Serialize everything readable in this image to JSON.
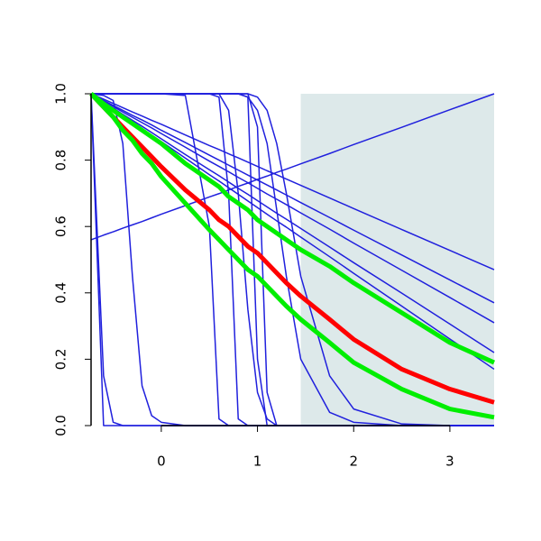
{
  "chart_data": {
    "type": "line",
    "x": [
      -0.73,
      -0.6,
      -0.5,
      -0.4,
      -0.3,
      -0.2,
      -0.1,
      0,
      0.25,
      0.5,
      0.6,
      0.7,
      0.8,
      0.9,
      1,
      1.1,
      1.2,
      1.3,
      1.45,
      1.75,
      2,
      2.5,
      3,
      3.46
    ],
    "xlim": [
      -0.73,
      3.46
    ],
    "xticks": [
      0,
      1,
      2,
      3
    ],
    "ylim": [
      0,
      1
    ],
    "yticks": [
      {
        "value": 0,
        "label": "0.0"
      },
      {
        "value": 0.2,
        "label": "0.2"
      },
      {
        "value": 0.4,
        "label": "0.4"
      },
      {
        "value": 0.6,
        "label": "0.6"
      },
      {
        "value": 0.8,
        "label": "0.8"
      },
      {
        "value": 1,
        "label": "1.0"
      }
    ],
    "shaded_region": {
      "xmin": 1.45,
      "xmax": 3.46,
      "color": "#dde9ea"
    },
    "series": [
      {
        "color": "#2020dd",
        "width": 1.5,
        "values": [
          0.56,
          0.574,
          0.584,
          0.595,
          0.605,
          0.615,
          0.626,
          0.637,
          0.663,
          0.689,
          0.699,
          0.71,
          0.721,
          0.731,
          0.742,
          0.752,
          0.763,
          0.773,
          0.789,
          0.82,
          0.847,
          0.899,
          0.952,
          1
        ]
      },
      {
        "color": "#2020dd",
        "width": 1.5,
        "values": [
          1,
          0.984,
          0.971,
          0.958,
          0.945,
          0.933,
          0.92,
          0.908,
          0.876,
          0.844,
          0.832,
          0.819,
          0.807,
          0.794,
          0.781,
          0.768,
          0.756,
          0.743,
          0.724,
          0.686,
          0.654,
          0.591,
          0.528,
          0.47
        ]
      },
      {
        "color": "#2020dd",
        "width": 1.5,
        "values": [
          1,
          0.98,
          0.965,
          0.95,
          0.935,
          0.921,
          0.906,
          0.89,
          0.853,
          0.815,
          0.8,
          0.785,
          0.77,
          0.755,
          0.74,
          0.725,
          0.71,
          0.695,
          0.672,
          0.627,
          0.589,
          0.514,
          0.439,
          0.37
        ]
      },
      {
        "color": "#2020dd",
        "width": 1.5,
        "values": [
          1,
          0.979,
          0.962,
          0.945,
          0.929,
          0.913,
          0.897,
          0.88,
          0.839,
          0.797,
          0.781,
          0.765,
          0.748,
          0.732,
          0.715,
          0.698,
          0.682,
          0.666,
          0.641,
          0.592,
          0.55,
          0.468,
          0.386,
          0.31
        ]
      },
      {
        "color": "#2020dd",
        "width": 1.5,
        "values": [
          1,
          0.976,
          0.957,
          0.938,
          0.92,
          0.902,
          0.883,
          0.864,
          0.817,
          0.771,
          0.753,
          0.734,
          0.715,
          0.697,
          0.678,
          0.659,
          0.64,
          0.622,
          0.594,
          0.538,
          0.491,
          0.399,
          0.306,
          0.22
        ]
      },
      {
        "color": "#2020dd",
        "width": 1.5,
        "values": [
          1,
          0.974,
          0.954,
          0.934,
          0.915,
          0.895,
          0.875,
          0.856,
          0.806,
          0.756,
          0.737,
          0.717,
          0.697,
          0.677,
          0.657,
          0.637,
          0.617,
          0.598,
          0.568,
          0.509,
          0.459,
          0.36,
          0.261,
          0.17
        ]
      },
      {
        "color": "#2020dd",
        "width": 1.5,
        "values": [
          1,
          0,
          0,
          0,
          0,
          0,
          0,
          0,
          0,
          0,
          0,
          0,
          0,
          0,
          0,
          0,
          0,
          0,
          0,
          0,
          0,
          0,
          0,
          0
        ]
      },
      {
        "color": "#2020dd",
        "width": 1.5,
        "values": [
          1,
          0.15,
          0.01,
          0,
          0,
          0,
          0,
          0,
          0,
          0,
          0,
          0,
          0,
          0,
          0,
          0,
          0,
          0,
          0,
          0,
          0,
          0,
          0,
          0
        ]
      },
      {
        "color": "#2020dd",
        "width": 1.5,
        "values": [
          1,
          0.995,
          0.98,
          0.85,
          0.45,
          0.12,
          0.03,
          0.01,
          0,
          0,
          0,
          0,
          0,
          0,
          0,
          0,
          0,
          0,
          0,
          0,
          0,
          0,
          0,
          0
        ]
      },
      {
        "color": "#2020dd",
        "width": 1.5,
        "values": [
          1,
          1,
          1,
          1,
          1,
          1,
          1,
          1,
          0.995,
          0.6,
          0.02,
          0,
          0,
          0,
          0,
          0,
          0,
          0,
          0,
          0,
          0,
          0,
          0,
          0
        ]
      },
      {
        "color": "#2020dd",
        "width": 1.5,
        "values": [
          1,
          1,
          1,
          1,
          1,
          1,
          1,
          1,
          1,
          1,
          0.99,
          0.7,
          0.02,
          0,
          0,
          0,
          0,
          0,
          0,
          0,
          0,
          0,
          0,
          0
        ]
      },
      {
        "color": "#2020dd",
        "width": 1.5,
        "values": [
          1,
          1,
          1,
          1,
          1,
          1,
          1,
          1,
          1,
          1,
          1,
          1,
          1,
          0.99,
          0.2,
          0,
          0,
          0,
          0,
          0,
          0,
          0,
          0,
          0
        ]
      },
      {
        "color": "#2020dd",
        "width": 1.5,
        "values": [
          1,
          1,
          1,
          1,
          1,
          1,
          1,
          1,
          1,
          1,
          1,
          0.95,
          0.7,
          0.35,
          0.1,
          0.02,
          0,
          0,
          0,
          0,
          0,
          0,
          0,
          0
        ]
      },
      {
        "color": "#2020dd",
        "width": 1.5,
        "values": [
          1,
          1,
          1,
          1,
          1,
          1,
          1,
          1,
          1,
          1,
          1,
          1,
          1,
          1,
          0.9,
          0.1,
          0,
          0,
          0,
          0,
          0,
          0,
          0,
          0
        ]
      },
      {
        "color": "#2020dd",
        "width": 1.5,
        "values": [
          1,
          1,
          1,
          1,
          1,
          1,
          1,
          1,
          1,
          1,
          1,
          1,
          1,
          0.99,
          0.95,
          0.85,
          0.65,
          0.45,
          0.2,
          0.04,
          0.01,
          0,
          0,
          0
        ]
      },
      {
        "color": "#2020dd",
        "width": 1.5,
        "values": [
          1,
          1,
          1,
          1,
          1,
          1,
          1,
          1,
          1,
          1,
          1,
          1,
          1,
          1,
          0.99,
          0.95,
          0.85,
          0.7,
          0.45,
          0.15,
          0.05,
          0.005,
          0,
          0
        ]
      },
      {
        "color": "#ff0000",
        "width": 5,
        "values": [
          1,
          0.96,
          0.93,
          0.9,
          0.87,
          0.84,
          0.81,
          0.78,
          0.71,
          0.65,
          0.62,
          0.6,
          0.57,
          0.54,
          0.52,
          0.49,
          0.46,
          0.43,
          0.39,
          0.32,
          0.26,
          0.17,
          0.11,
          0.07
        ]
      },
      {
        "color": "#00ee00",
        "width": 5,
        "values": [
          1,
          0.97,
          0.95,
          0.93,
          0.91,
          0.89,
          0.87,
          0.85,
          0.79,
          0.74,
          0.72,
          0.69,
          0.67,
          0.65,
          0.62,
          0.6,
          0.58,
          0.56,
          0.53,
          0.48,
          0.43,
          0.34,
          0.25,
          0.19
        ]
      },
      {
        "color": "#00ee00",
        "width": 5,
        "values": [
          1,
          0.96,
          0.93,
          0.89,
          0.86,
          0.82,
          0.79,
          0.75,
          0.67,
          0.59,
          0.56,
          0.53,
          0.5,
          0.47,
          0.45,
          0.42,
          0.39,
          0.36,
          0.32,
          0.25,
          0.19,
          0.11,
          0.05,
          0.025
        ]
      }
    ]
  }
}
